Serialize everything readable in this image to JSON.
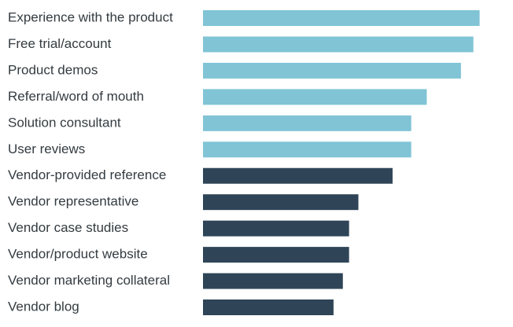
{
  "chart_data": {
    "type": "bar",
    "orientation": "horizontal",
    "title": "",
    "xlabel": "",
    "ylabel": "",
    "xlim": [
      0,
      100
    ],
    "grid": false,
    "legend": "none",
    "categories": [
      "Experience with the product",
      "Free trial/account",
      "Product demos",
      "Referral/word of mouth",
      "Solution consultant",
      "User reviews",
      "Vendor-provided reference",
      "Vendor representative",
      "Vendor case studies",
      "Vendor/product website",
      "Vendor marketing collateral",
      "Vendor blog"
    ],
    "values": [
      89,
      87,
      83,
      72,
      67,
      67,
      61,
      50,
      47,
      47,
      45,
      42
    ],
    "groups": [
      "non-vendor",
      "non-vendor",
      "non-vendor",
      "non-vendor",
      "non-vendor",
      "non-vendor",
      "vendor",
      "vendor",
      "vendor",
      "vendor",
      "vendor",
      "vendor"
    ],
    "colors": {
      "non-vendor": "#80c4d6",
      "vendor": "#2f4557",
      "label": "#333b40"
    }
  }
}
